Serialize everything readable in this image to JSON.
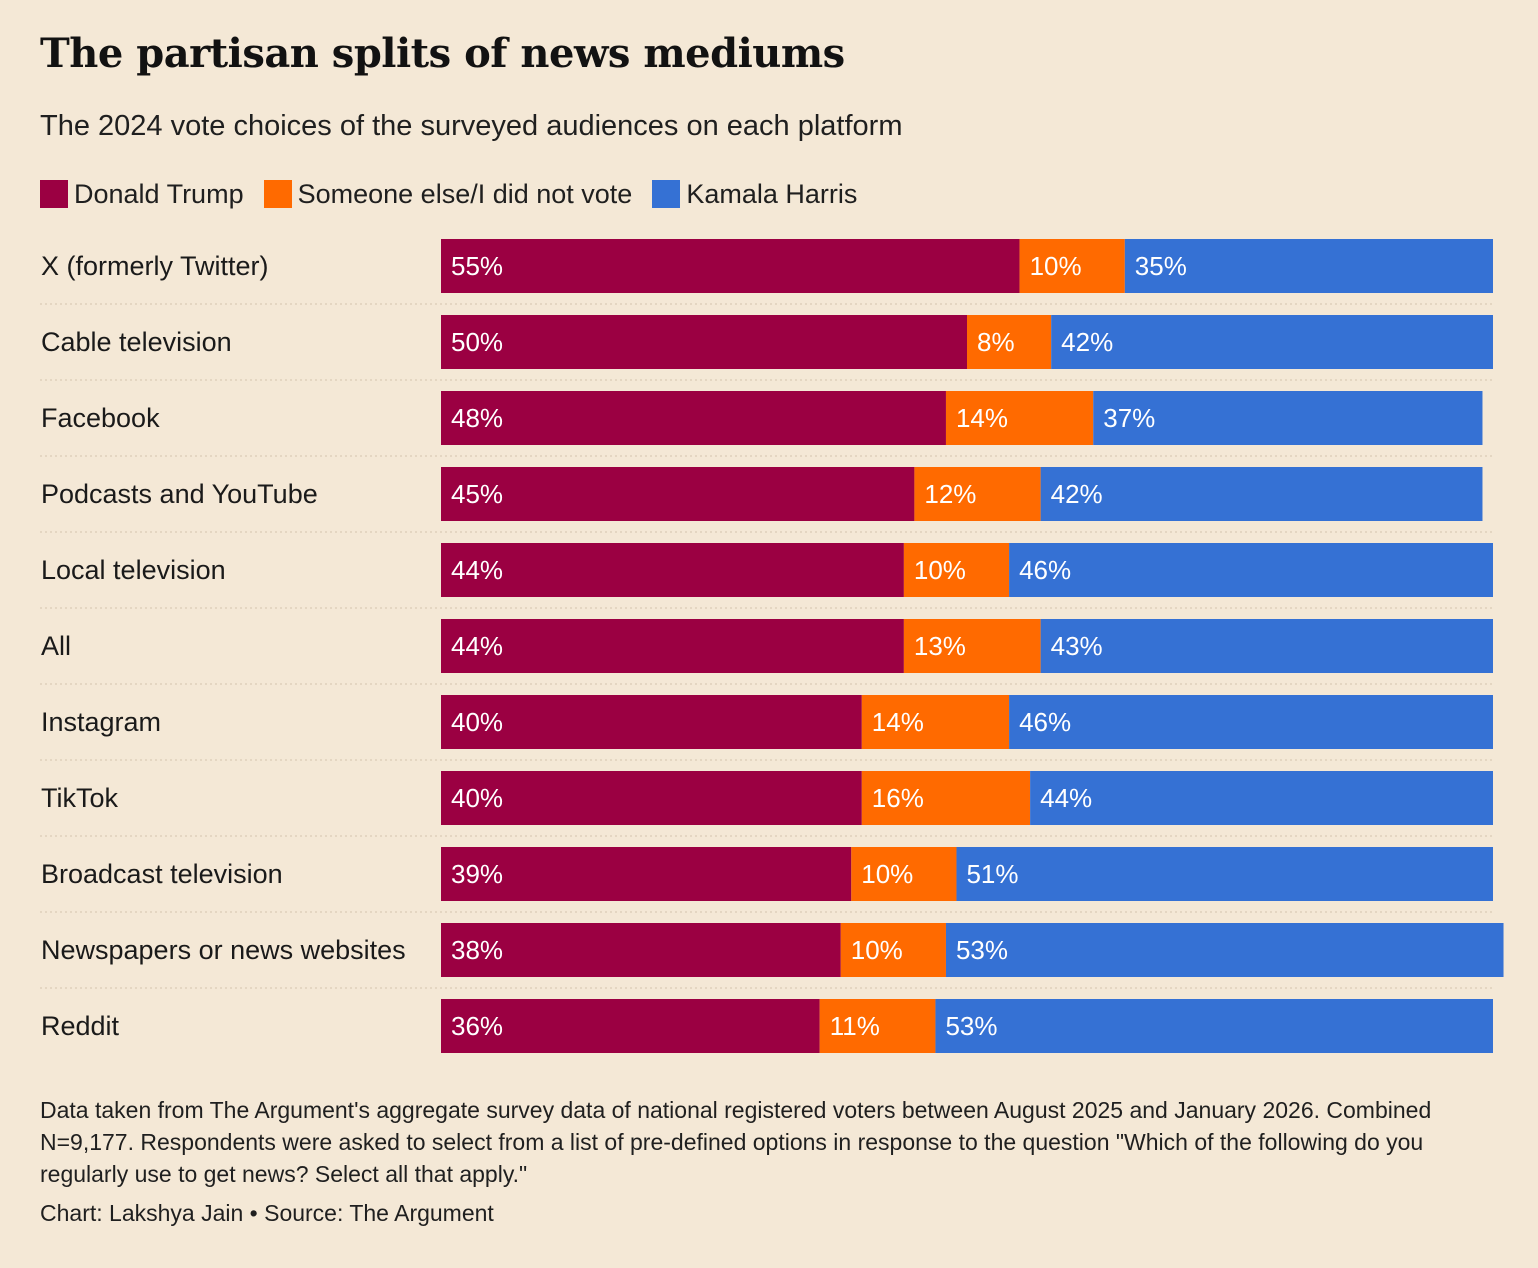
{
  "title": "The partisan splits of news mediums",
  "subtitle": "The 2024 vote choices of the surveyed audiences on each platform",
  "legend": [
    {
      "label": "Donald Trump",
      "color": "#9b0042"
    },
    {
      "label": "Someone else/I did not vote",
      "color": "#ff6a00"
    },
    {
      "label": "Kamala Harris",
      "color": "#3571d4"
    }
  ],
  "footnote": "Data taken from The Argument's aggregate survey data of national registered voters between August 2025 and January 2026. Combined N=9,177. Respondents were asked to select from a list of pre-defined options in response to the question \"Which of the following do you regularly use to get news? Select all that apply.\"",
  "credit": "Chart: Lakshya Jain • Source: The Argument",
  "chart_data": {
    "type": "bar",
    "orientation": "horizontal",
    "stacked": true,
    "unit": "%",
    "categories": [
      "X (formerly Twitter)",
      "Cable television",
      "Facebook",
      "Podcasts and YouTube",
      "Local television",
      "All",
      "Instagram",
      "TikTok",
      "Broadcast television",
      "Newspapers or news websites",
      "Reddit"
    ],
    "series": [
      {
        "name": "Donald Trump",
        "color": "#9b0042",
        "values": [
          55,
          50,
          48,
          45,
          44,
          44,
          40,
          40,
          39,
          38,
          36
        ]
      },
      {
        "name": "Someone else/I did not vote",
        "color": "#ff6a00",
        "values": [
          10,
          8,
          14,
          12,
          10,
          13,
          14,
          16,
          10,
          10,
          11
        ]
      },
      {
        "name": "Kamala Harris",
        "color": "#3571d4",
        "values": [
          35,
          42,
          37,
          42,
          46,
          43,
          46,
          44,
          51,
          53,
          53
        ]
      }
    ],
    "xlim": [
      0,
      100
    ],
    "grid": false,
    "legend_position": "top-left"
  }
}
